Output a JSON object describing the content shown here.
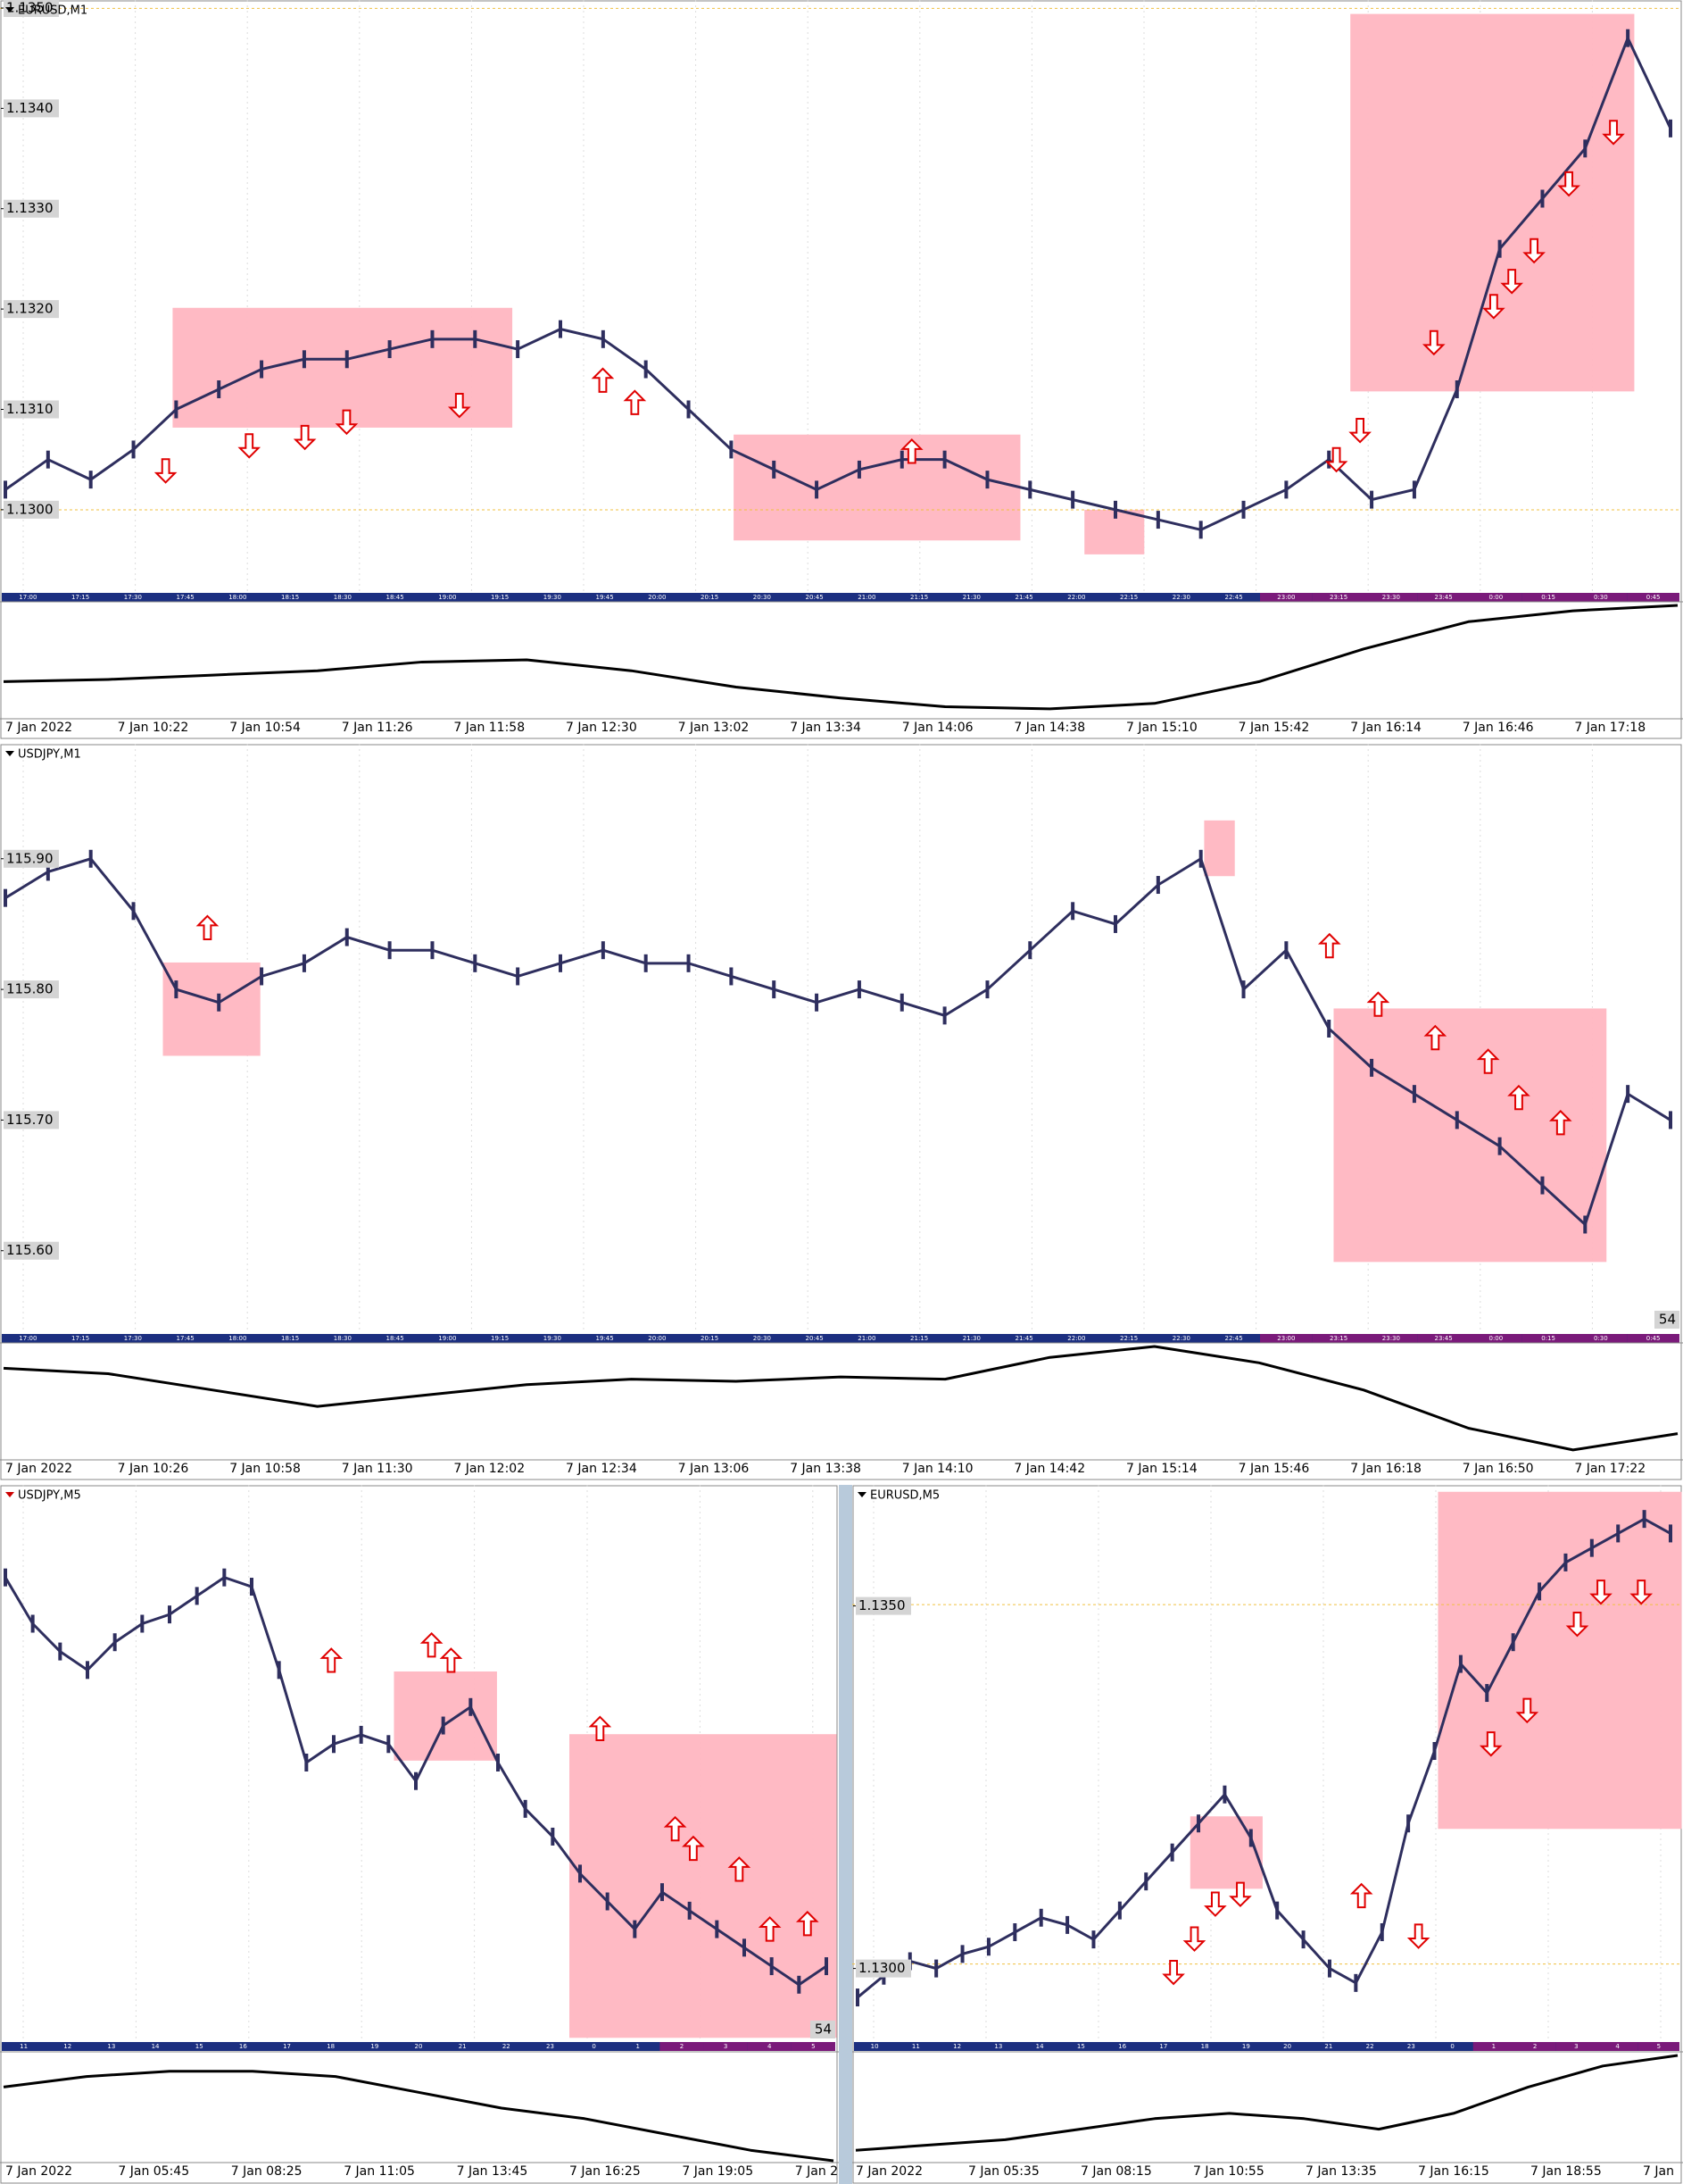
{
  "chart_data": [
    {
      "type": "line",
      "title": "EURUSD,M1",
      "color": "#2e2e5e",
      "ylim": [
        1.12918,
        1.13508
      ],
      "yticks": [
        {
          "value": 1.135,
          "label": "1.1350"
        },
        {
          "value": 1.134,
          "label": "1.1340"
        },
        {
          "value": 1.133,
          "label": "1.1330"
        },
        {
          "value": 1.132,
          "label": "1.1320"
        },
        {
          "value": 1.131,
          "label": "1.1310"
        },
        {
          "value": 1.13,
          "label": "1.1300"
        }
      ],
      "values": [
        1.1302,
        1.1305,
        1.1303,
        1.1306,
        1.131,
        1.1312,
        1.1314,
        1.1315,
        1.1315,
        1.1316,
        1.1317,
        1.1317,
        1.1316,
        1.1318,
        1.1317,
        1.1314,
        1.131,
        1.1306,
        1.1304,
        1.1302,
        1.1304,
        1.1305,
        1.1305,
        1.1303,
        1.1302,
        1.1301,
        1.13,
        1.1299,
        1.1298,
        1.13,
        1.1302,
        1.1305,
        1.1301,
        1.1302,
        1.1312,
        1.1326,
        1.1331,
        1.1336,
        1.1347,
        1.1338
      ],
      "session_labels": [
        "17:00",
        "17:15",
        "17:30",
        "17:45",
        "18:00",
        "18:15",
        "18:30",
        "18:45",
        "19:00",
        "19:15",
        "19:30",
        "19:45",
        "20:00",
        "20:15",
        "20:30",
        "20:45",
        "21:00",
        "21:15",
        "21:30",
        "21:45",
        "22:00",
        "22:15",
        "22:30",
        "22:45",
        "23:00",
        "23:15",
        "23:30",
        "23:45",
        "0:00",
        "0:15",
        "0:30",
        "0:45"
      ],
      "xtick_labels": [
        "7 Jan 2022",
        "7 Jan 10:22",
        "7 Jan 10:54",
        "7 Jan 11:26",
        "7 Jan 11:58",
        "7 Jan 12:30",
        "7 Jan 13:02",
        "7 Jan 13:34",
        "7 Jan 14:06",
        "7 Jan 14:38",
        "7 Jan 15:10",
        "7 Jan 15:42",
        "7 Jan 16:14",
        "7 Jan 16:46",
        "7 Jan 17:18"
      ]
    },
    {
      "type": "line",
      "title": "USDJPY,M1",
      "color": "#2e2e5e",
      "ylim": [
        115.539,
        115.988
      ],
      "yticks": [
        {
          "value": 115.9,
          "label": "115.90"
        },
        {
          "value": 115.8,
          "label": "115.80"
        },
        {
          "value": 115.7,
          "label": "115.70"
        },
        {
          "value": 115.6,
          "label": "115.60"
        }
      ],
      "values": [
        115.87,
        115.89,
        115.9,
        115.86,
        115.8,
        115.79,
        115.81,
        115.82,
        115.84,
        115.83,
        115.83,
        115.82,
        115.81,
        115.82,
        115.83,
        115.82,
        115.82,
        115.81,
        115.8,
        115.79,
        115.8,
        115.79,
        115.78,
        115.8,
        115.83,
        115.86,
        115.85,
        115.88,
        115.9,
        115.8,
        115.83,
        115.77,
        115.74,
        115.72,
        115.7,
        115.68,
        115.65,
        115.62,
        115.72,
        115.7
      ],
      "corner_label": "54",
      "session_labels": [
        "17:00",
        "17:15",
        "17:30",
        "17:45",
        "18:00",
        "18:15",
        "18:30",
        "18:45",
        "19:00",
        "19:15",
        "19:30",
        "19:45",
        "20:00",
        "20:15",
        "20:30",
        "20:45",
        "21:00",
        "21:15",
        "21:30",
        "21:45",
        "22:00",
        "22:15",
        "22:30",
        "22:45",
        "23:00",
        "23:15",
        "23:30",
        "23:45",
        "0:00",
        "0:15",
        "0:30",
        "0:45"
      ],
      "xtick_labels": [
        "7 Jan 2022",
        "7 Jan 10:26",
        "7 Jan 10:58",
        "7 Jan 11:30",
        "7 Jan 12:02",
        "7 Jan 12:34",
        "7 Jan 13:06",
        "7 Jan 13:38",
        "7 Jan 14:10",
        "7 Jan 14:42",
        "7 Jan 15:14",
        "7 Jan 15:46",
        "7 Jan 16:18",
        "7 Jan 16:50",
        "7 Jan 17:22"
      ]
    },
    {
      "type": "line",
      "title": "USDJPY,M5",
      "color": "#2e2e5e",
      "ylim": [
        115.5,
        116.1
      ],
      "yticks": [],
      "values": [
        116.0,
        115.95,
        115.92,
        115.9,
        115.93,
        115.95,
        115.96,
        115.98,
        116.0,
        115.99,
        115.9,
        115.8,
        115.82,
        115.83,
        115.82,
        115.78,
        115.84,
        115.86,
        115.8,
        115.75,
        115.72,
        115.68,
        115.65,
        115.62,
        115.66,
        115.64,
        115.62,
        115.6,
        115.58,
        115.56,
        115.58
      ],
      "corner_label": "54",
      "session_labels": [
        "11",
        "12",
        "13",
        "14",
        "15",
        "16",
        "17",
        "18",
        "19",
        "20",
        "21",
        "22",
        "23",
        "0",
        "1",
        "2",
        "3",
        "4",
        "5"
      ],
      "xtick_labels": [
        "7 Jan 2022",
        "7 Jan 05:45",
        "7 Jan 08:25",
        "7 Jan 11:05",
        "7 Jan 13:45",
        "7 Jan 16:25",
        "7 Jan 19:05",
        "7 Jan 2"
      ]
    },
    {
      "type": "line",
      "title": "EURUSD,M5",
      "color": "#2e2e5e",
      "ylim": [
        1.12901,
        1.13667
      ],
      "yticks": [
        {
          "value": 1.135,
          "label": "1.1350"
        },
        {
          "value": 1.13,
          "label": "1.1300"
        }
      ],
      "values": [
        1.1296,
        1.1299,
        1.1301,
        1.13,
        1.1302,
        1.1303,
        1.1305,
        1.1307,
        1.1306,
        1.1304,
        1.1308,
        1.1312,
        1.1316,
        1.132,
        1.1324,
        1.1318,
        1.1308,
        1.1304,
        1.13,
        1.1298,
        1.1305,
        1.132,
        1.133,
        1.1342,
        1.1338,
        1.1345,
        1.1352,
        1.1356,
        1.1358,
        1.136,
        1.1362,
        1.136
      ],
      "session_labels": [
        "10",
        "11",
        "12",
        "13",
        "14",
        "15",
        "16",
        "17",
        "18",
        "19",
        "20",
        "21",
        "22",
        "23",
        "0",
        "1",
        "2",
        "3",
        "4",
        "5"
      ],
      "xtick_labels": [
        "7 Jan 2022",
        "7 Jan 05:35",
        "7 Jan 08:15",
        "7 Jan 10:55",
        "7 Jan 13:35",
        "7 Jan 16:15",
        "7 Jan 18:55",
        "7 Jan"
      ]
    }
  ]
}
